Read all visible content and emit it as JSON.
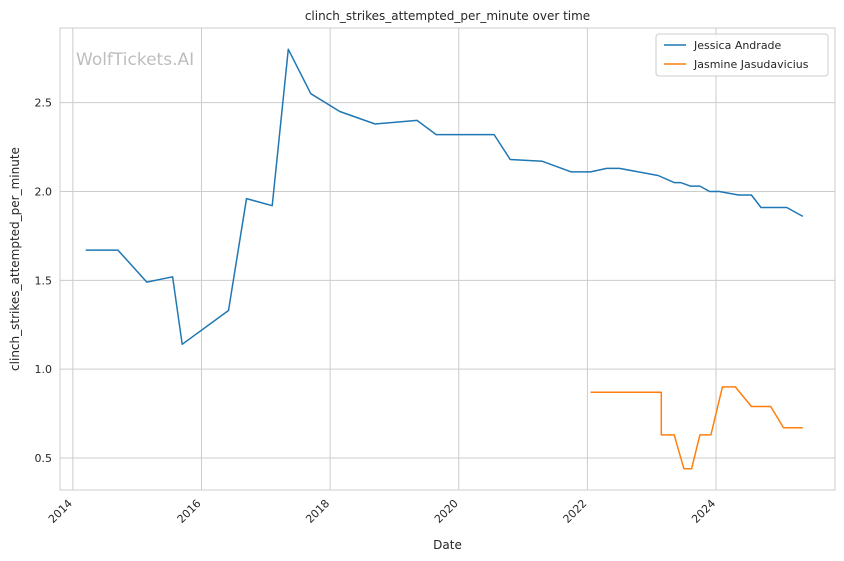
{
  "chart_data": {
    "type": "line",
    "title": "clinch_strikes_attempted_per_minute over time",
    "xlabel": "Date",
    "ylabel": "clinch_strikes_attempted_per_minute",
    "watermark": "WolfTickets.AI",
    "x_ticks": [
      "2014",
      "2016",
      "2018",
      "2020",
      "2022",
      "2024"
    ],
    "y_ticks": [
      0.5,
      1.0,
      1.5,
      2.0,
      2.5
    ],
    "y_tick_labels": [
      "0.5",
      "1.0",
      "1.5",
      "2.0",
      "2.5"
    ],
    "xlim": [
      2013.8,
      2025.85
    ],
    "ylim": [
      0.32,
      2.92
    ],
    "grid": true,
    "legend_position": "top-right",
    "series": [
      {
        "name": "Jessica Andrade",
        "color": "#1f77b4",
        "points": [
          [
            2014.2,
            1.67
          ],
          [
            2014.7,
            1.67
          ],
          [
            2015.15,
            1.49
          ],
          [
            2015.55,
            1.52
          ],
          [
            2015.7,
            1.14
          ],
          [
            2016.42,
            1.33
          ],
          [
            2016.7,
            1.96
          ],
          [
            2017.1,
            1.92
          ],
          [
            2017.35,
            2.8
          ],
          [
            2017.7,
            2.55
          ],
          [
            2018.15,
            2.45
          ],
          [
            2018.7,
            2.38
          ],
          [
            2019.35,
            2.4
          ],
          [
            2019.65,
            2.32
          ],
          [
            2020.55,
            2.32
          ],
          [
            2020.8,
            2.18
          ],
          [
            2021.3,
            2.17
          ],
          [
            2021.75,
            2.11
          ],
          [
            2022.05,
            2.11
          ],
          [
            2022.3,
            2.13
          ],
          [
            2022.5,
            2.13
          ],
          [
            2023.1,
            2.09
          ],
          [
            2023.35,
            2.05
          ],
          [
            2023.45,
            2.05
          ],
          [
            2023.6,
            2.03
          ],
          [
            2023.75,
            2.03
          ],
          [
            2023.9,
            2.0
          ],
          [
            2024.05,
            2.0
          ],
          [
            2024.35,
            1.98
          ],
          [
            2024.55,
            1.98
          ],
          [
            2024.7,
            1.91
          ],
          [
            2025.1,
            1.91
          ],
          [
            2025.35,
            1.86
          ]
        ]
      },
      {
        "name": "Jasmine Jasudavicius",
        "color": "#ff7f0e",
        "points": [
          [
            2022.05,
            0.87
          ],
          [
            2023.15,
            0.87
          ],
          [
            2023.15,
            0.63
          ],
          [
            2023.35,
            0.63
          ],
          [
            2023.5,
            0.44
          ],
          [
            2023.62,
            0.44
          ],
          [
            2023.75,
            0.63
          ],
          [
            2023.92,
            0.63
          ],
          [
            2024.1,
            0.9
          ],
          [
            2024.3,
            0.9
          ],
          [
            2024.55,
            0.79
          ],
          [
            2024.85,
            0.79
          ],
          [
            2025.05,
            0.67
          ],
          [
            2025.35,
            0.67
          ]
        ]
      }
    ]
  }
}
